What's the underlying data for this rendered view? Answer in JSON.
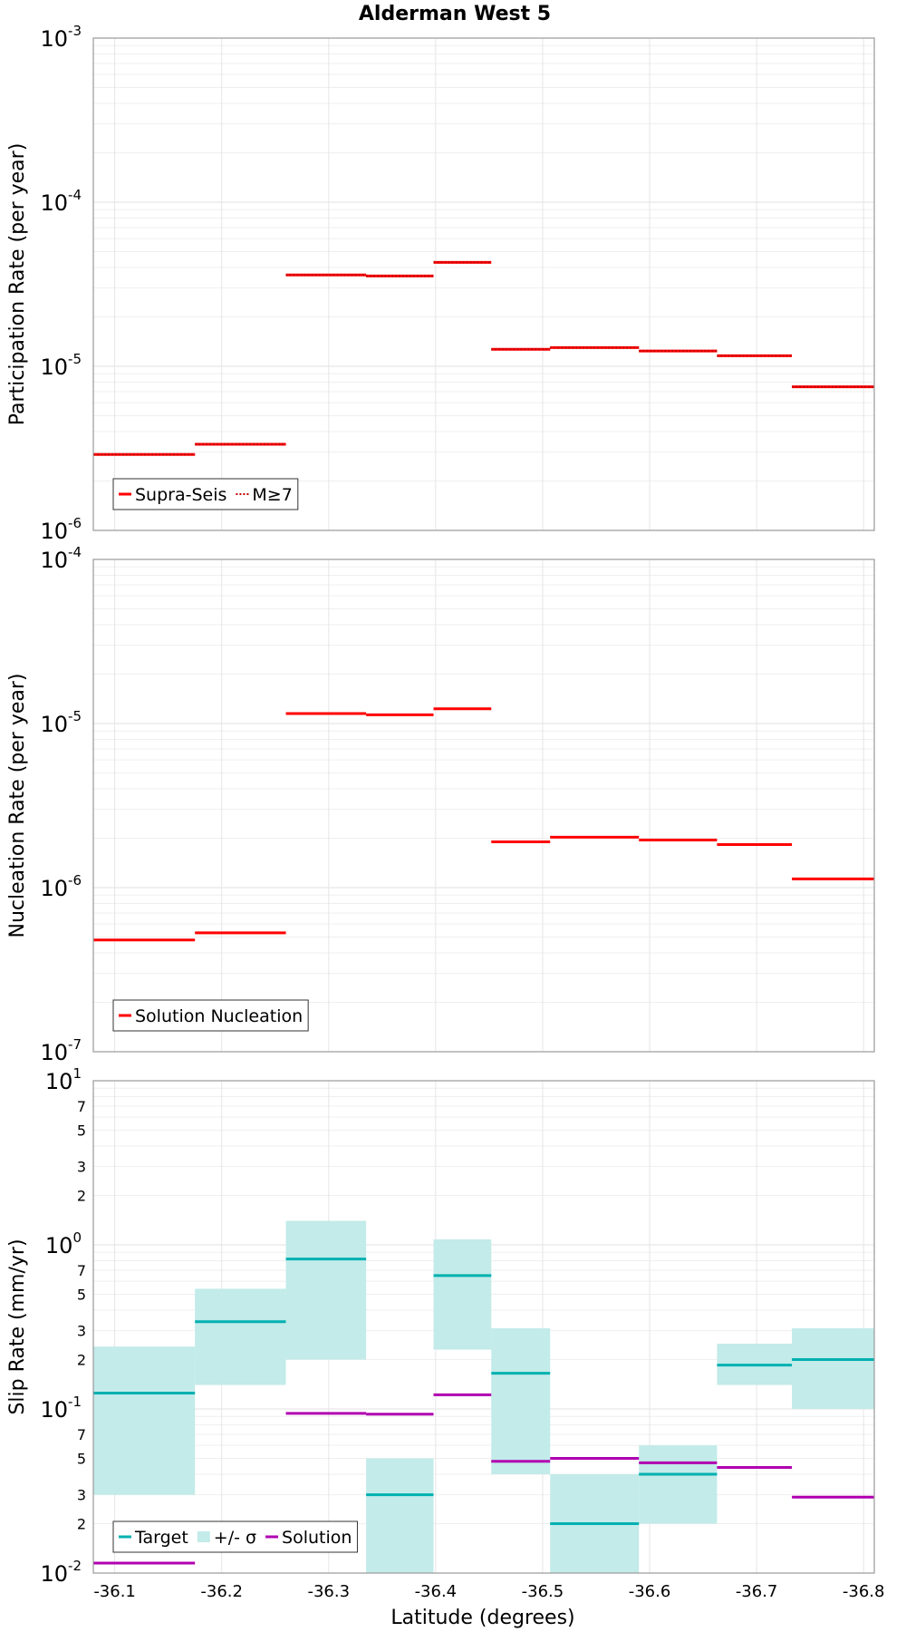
{
  "chart_data": {
    "title": "Alderman West 5",
    "xlabel": "Latitude (degrees)",
    "x_ticks": [
      "-36.1",
      "-36.2",
      "-36.3",
      "-36.4",
      "-36.5",
      "-36.6",
      "-36.7",
      "-36.8"
    ],
    "x_tick_values": [
      -36.1,
      -36.2,
      -36.3,
      -36.4,
      -36.5,
      -36.6,
      -36.7,
      -36.8
    ],
    "xlim": [
      -36.08,
      -36.81
    ],
    "section_boundaries": [
      -36.08,
      -36.175,
      -36.26,
      -36.335,
      -36.398,
      -36.452,
      -36.507,
      -36.59,
      -36.663,
      -36.733,
      -36.81
    ],
    "panels": [
      {
        "type": "line",
        "step": true,
        "ylabel": "Participation Rate (per year)",
        "yscale": "log",
        "ylim": [
          1e-06,
          0.001
        ],
        "y_ticks": [
          {
            "base": "10",
            "exp": "-6"
          },
          {
            "base": "10",
            "exp": "-5"
          },
          {
            "base": "10",
            "exp": "-4"
          },
          {
            "base": "10",
            "exp": "-3"
          }
        ],
        "grid": true,
        "legend": "bottom-left",
        "legend_entries": [
          {
            "label": "Supra-Seis",
            "color": "#ff0000",
            "style": "solid"
          },
          {
            "label": "M≥7",
            "color": "#ff0000",
            "style": "dotted"
          }
        ],
        "series": [
          {
            "name": "Supra-Seis",
            "color": "#ff0000",
            "style": "solid",
            "values": [
              2.9e-06,
              3.35e-06,
              3.6e-05,
              3.55e-05,
              4.3e-05,
              1.27e-05,
              1.3e-05,
              1.24e-05,
              1.16e-05,
              7.5e-06
            ]
          },
          {
            "name": "M≥7",
            "color": "#ff0000",
            "style": "dotted",
            "values": [
              2.9e-06,
              3.35e-06,
              3.6e-05,
              3.55e-05,
              4.3e-05,
              1.27e-05,
              1.3e-05,
              1.24e-05,
              1.16e-05,
              7.5e-06
            ]
          }
        ]
      },
      {
        "type": "line",
        "step": true,
        "ylabel": "Nucleation Rate (per year)",
        "yscale": "log",
        "ylim": [
          1e-07,
          0.0001
        ],
        "y_ticks": [
          {
            "base": "10",
            "exp": "-7"
          },
          {
            "base": "10",
            "exp": "-6"
          },
          {
            "base": "10",
            "exp": "-5"
          },
          {
            "base": "10",
            "exp": "-4"
          }
        ],
        "grid": true,
        "legend": "bottom-left",
        "legend_entries": [
          {
            "label": "Solution Nucleation",
            "color": "#ff0000",
            "style": "solid"
          }
        ],
        "series": [
          {
            "name": "Solution Nucleation",
            "color": "#ff0000",
            "style": "solid",
            "values": [
              4.8e-07,
              5.3e-07,
              1.15e-05,
              1.13e-05,
              1.23e-05,
              1.9e-06,
              2.03e-06,
              1.95e-06,
              1.83e-06,
              1.13e-06
            ]
          }
        ]
      },
      {
        "type": "line",
        "step": true,
        "ylabel": "Slip Rate (mm/yr)",
        "yscale": "log",
        "ylim": [
          0.01,
          10
        ],
        "y_ticks": [
          {
            "base": "10",
            "exp": "-2"
          },
          {
            "base": "10",
            "exp": "-1"
          },
          {
            "base": "10",
            "exp": "0"
          },
          {
            "base": "10",
            "exp": "1"
          }
        ],
        "y_minor_labels": [
          "2",
          "3",
          "5",
          "7"
        ],
        "grid": true,
        "legend": "bottom-left",
        "legend_entries": [
          {
            "label": "Target",
            "color": "#00b0b0",
            "style": "solid"
          },
          {
            "label": "+/- σ",
            "color": "#c2ebe9",
            "style": "box"
          },
          {
            "label": "Solution",
            "color": "#b000b0",
            "style": "solid"
          }
        ],
        "band": {
          "name": "+/- σ",
          "color": "#c2ebe9",
          "low": [
            0.03,
            0.14,
            0.2,
            0.01,
            0.23,
            0.04,
            0.01,
            0.02,
            0.14,
            0.1
          ],
          "high": [
            0.24,
            0.54,
            1.4,
            0.05,
            1.08,
            0.31,
            0.04,
            0.06,
            0.25,
            0.31
          ]
        },
        "series": [
          {
            "name": "Target",
            "color": "#00b0b0",
            "style": "solid",
            "values": [
              0.125,
              0.34,
              0.82,
              0.03,
              0.65,
              0.165,
              0.02,
              0.04,
              0.185,
              0.2
            ]
          },
          {
            "name": "Solution",
            "color": "#b000b0",
            "style": "solid",
            "values": [
              0.0115,
              null,
              0.094,
              0.093,
              0.122,
              0.048,
              0.05,
              0.047,
              0.044,
              0.029
            ]
          }
        ]
      }
    ]
  }
}
